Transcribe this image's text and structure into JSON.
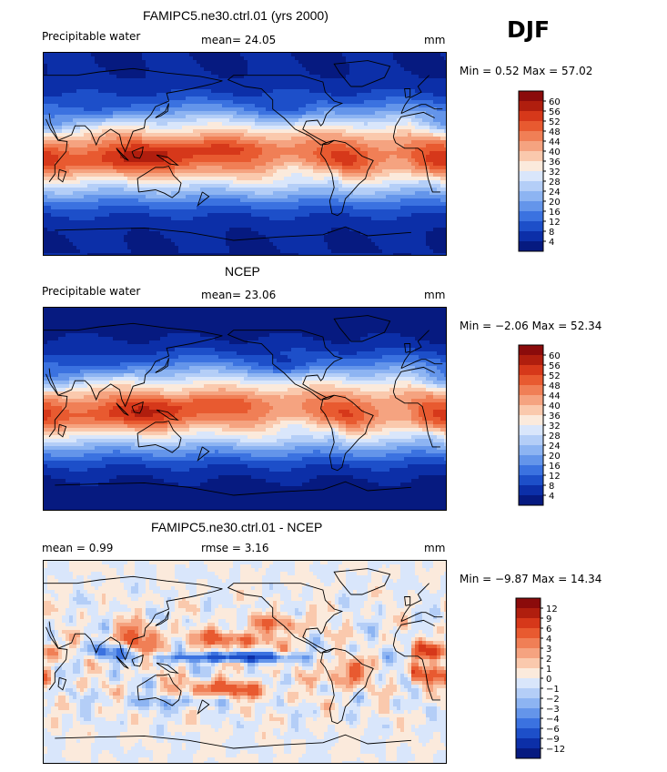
{
  "season": "DJF",
  "panels": [
    {
      "title": "FAMIPC5.ne30.ctrl.01 (yrs 2000)",
      "left": "Precipitable water",
      "mid": "mean=   24.05",
      "units": "mm",
      "minmax": "Min =    0.52  Max =   57.02"
    },
    {
      "title": "NCEP",
      "left": "Precipitable water",
      "mid": "mean=   23.06",
      "units": "mm",
      "minmax": "Min =   −2.06  Max =   52.34"
    },
    {
      "title": "FAMIPC5.ne30.ctrl.01 - NCEP",
      "left": "mean =      0.99",
      "mid": "rmse =      3.16",
      "units": "mm",
      "minmax": "Min =   −9.87  Max =   14.34"
    }
  ],
  "chart_data": [
    {
      "type": "heatmap",
      "title": "FAMIPC5.ne30.ctrl.01 (yrs 2000)",
      "variable": "Precipitable water",
      "units": "mm",
      "mean": 24.05,
      "min": 0.52,
      "max": 57.02,
      "colorbar_levels": [
        "60",
        "56",
        "52",
        "48",
        "44",
        "40",
        "36",
        "32",
        "28",
        "24",
        "20",
        "16",
        "12",
        "8",
        "4"
      ],
      "colors": [
        "#8b0b0b",
        "#b01e0e",
        "#d6381a",
        "#e85a30",
        "#f07f56",
        "#f5a380",
        "#fac9ad",
        "#fbeadc",
        "#d9e6fb",
        "#b4cef7",
        "#8db4f2",
        "#6495ea",
        "#3b72e0",
        "#1d4fc9",
        "#0c2fa8",
        "#061a80"
      ]
    },
    {
      "type": "heatmap",
      "title": "NCEP",
      "variable": "Precipitable water",
      "units": "mm",
      "mean": 23.06,
      "min": -2.06,
      "max": 52.34,
      "colorbar_levels": [
        "60",
        "56",
        "52",
        "48",
        "44",
        "40",
        "36",
        "32",
        "28",
        "24",
        "20",
        "16",
        "12",
        "8",
        "4"
      ],
      "colors": [
        "#8b0b0b",
        "#b01e0e",
        "#d6381a",
        "#e85a30",
        "#f07f56",
        "#f5a380",
        "#fac9ad",
        "#fbeadc",
        "#d9e6fb",
        "#b4cef7",
        "#8db4f2",
        "#6495ea",
        "#3b72e0",
        "#1d4fc9",
        "#0c2fa8",
        "#061a80"
      ]
    },
    {
      "type": "heatmap",
      "title": "FAMIPC5.ne30.ctrl.01 - NCEP",
      "units": "mm",
      "mean": 0.99,
      "rmse": 3.16,
      "min": -9.87,
      "max": 14.34,
      "colorbar_levels": [
        "12",
        "9",
        "6",
        "4",
        "3",
        "2",
        "1",
        "0",
        "−1",
        "−2",
        "−3",
        "−4",
        "−6",
        "−9",
        "−12"
      ],
      "colors": [
        "#8b0b0b",
        "#b01e0e",
        "#d6381a",
        "#e85a30",
        "#f07f56",
        "#f5a380",
        "#fac9ad",
        "#fbeadc",
        "#d9e6fb",
        "#b4cef7",
        "#8db4f2",
        "#6495ea",
        "#3b72e0",
        "#1d4fc9",
        "#0c2fa8",
        "#061a80"
      ]
    }
  ]
}
